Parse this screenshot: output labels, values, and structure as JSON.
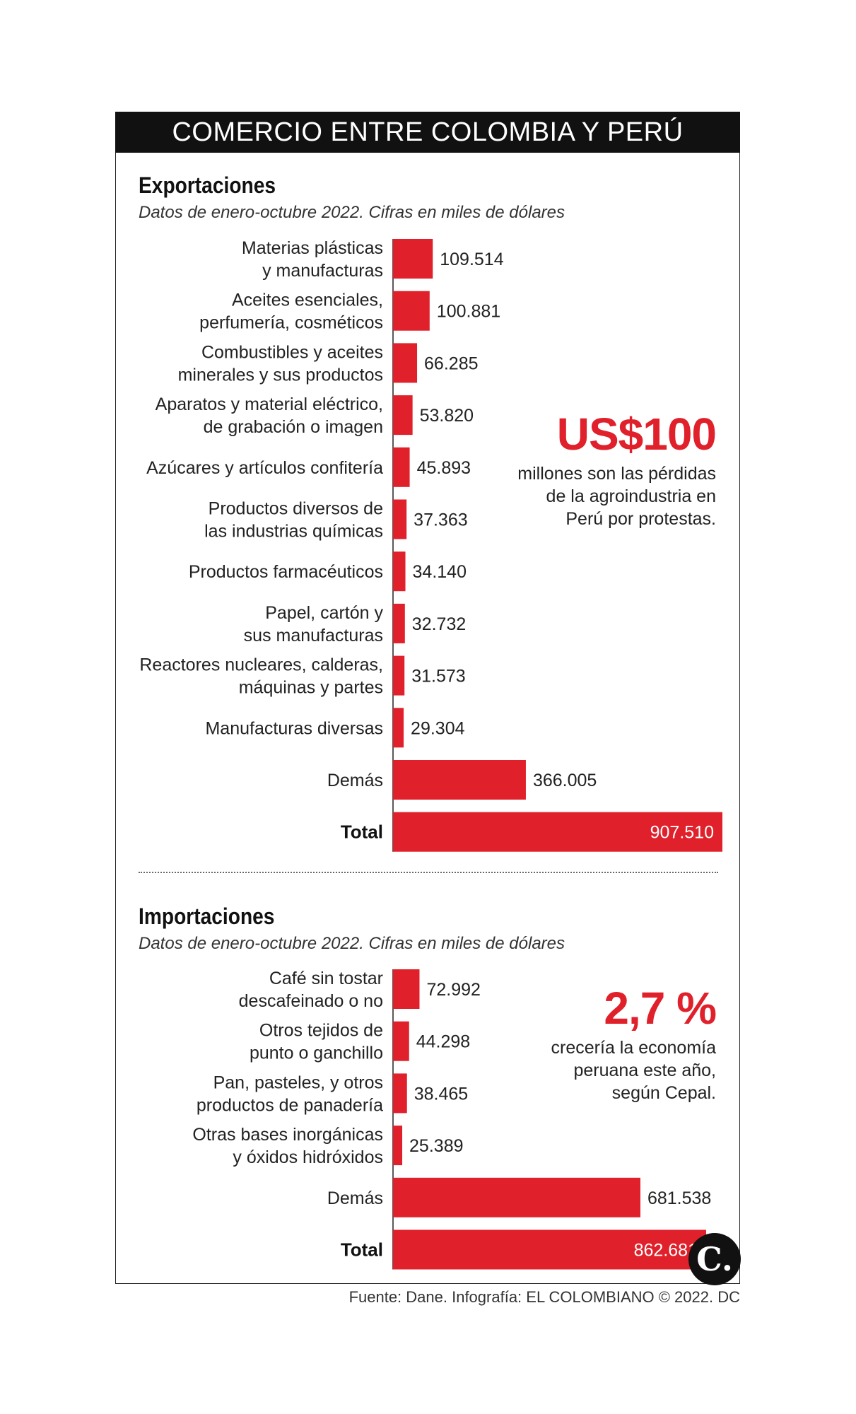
{
  "title": "COMERCIO ENTRE COLOMBIA Y PERÚ",
  "colors": {
    "bar": "#e0202a",
    "accent": "#e0202a",
    "title_bg": "#111111"
  },
  "chart_data": [
    {
      "type": "bar",
      "orientation": "horizontal",
      "title": "Exportaciones",
      "subtitle": "Datos de enero-octubre 2022. Cifras en miles de dólares",
      "categories": [
        [
          "Materias plásticas",
          "y manufacturas"
        ],
        [
          "Aceites esenciales,",
          "perfumería, cosméticos"
        ],
        [
          "Combustibles y aceites",
          "minerales y sus productos"
        ],
        [
          "Aparatos y material eléctrico,",
          "de grabación o imagen"
        ],
        [
          "Azúcares y artículos confitería"
        ],
        [
          "Productos diversos de",
          "las industrias químicas"
        ],
        [
          "Productos farmacéuticos"
        ],
        [
          "Papel, cartón y",
          "sus manufacturas"
        ],
        [
          "Reactores nucleares, calderas,",
          "máquinas y partes"
        ],
        [
          "Manufacturas diversas"
        ],
        [
          "Demás"
        ],
        [
          "Total"
        ]
      ],
      "values": [
        109514,
        100881,
        66285,
        53820,
        45893,
        37363,
        34140,
        32732,
        31573,
        29304,
        366005,
        907510
      ],
      "value_labels": [
        "109.514",
        "100.881",
        "66.285",
        "53.820",
        "45.893",
        "37.363",
        "34.140",
        "32.732",
        "31.573",
        "29.304",
        "366.005",
        "907.510"
      ],
      "xlim": [
        0,
        907510
      ]
    },
    {
      "type": "bar",
      "orientation": "horizontal",
      "title": "Importaciones",
      "subtitle": "Datos de enero-octubre 2022. Cifras en miles de dólares",
      "categories": [
        [
          "Café sin tostar",
          "descafeinado o no"
        ],
        [
          "Otros tejidos de",
          "punto o ganchillo"
        ],
        [
          "Pan, pasteles, y otros",
          "productos de panadería"
        ],
        [
          "Otras bases inorgánicas",
          "y óxidos hidróxidos"
        ],
        [
          "Demás"
        ],
        [
          "Total"
        ]
      ],
      "values": [
        72992,
        44298,
        38465,
        25389,
        681538,
        862681
      ],
      "value_labels": [
        "72.992",
        "44.298",
        "38.465",
        "25.389",
        "681.538",
        "862.681"
      ],
      "xlim": [
        0,
        907510
      ]
    }
  ],
  "callouts": [
    {
      "number": "US$100",
      "text": "millones son las pérdidas de la agroindustria en Perú por protestas."
    },
    {
      "number": "2,7 %",
      "text": "crecería la economía peruana este año, según Cepal."
    }
  ],
  "source": "Fuente: Dane. Infografía: EL COLOMBIANO © 2022. DC",
  "logo_letter": "C."
}
